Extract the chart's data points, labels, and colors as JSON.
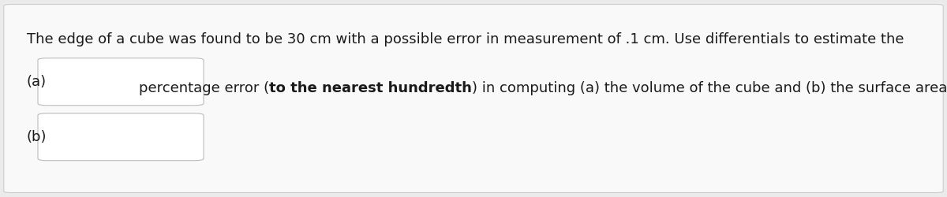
{
  "background_color": "#ebebeb",
  "card_color": "#f9f9f9",
  "card_border_color": "#cccccc",
  "text_line1": "The edge of a cube was found to be 30 cm with a possible error in measurement of .1 cm. Use differentials to estimate the",
  "text_line2_normal1": "percentage error (",
  "text_line2_bold": "to the nearest hundredth",
  "text_line2_normal2": ") in computing (a) the volume of the cube and (b) the surface area of the cube.",
  "label_a": "(a)",
  "label_b": "(b)",
  "font_size": 13.0,
  "text_color": "#1a1a1a",
  "box_border_color": "#bbbbbb",
  "box_fill_color": "#ffffff"
}
